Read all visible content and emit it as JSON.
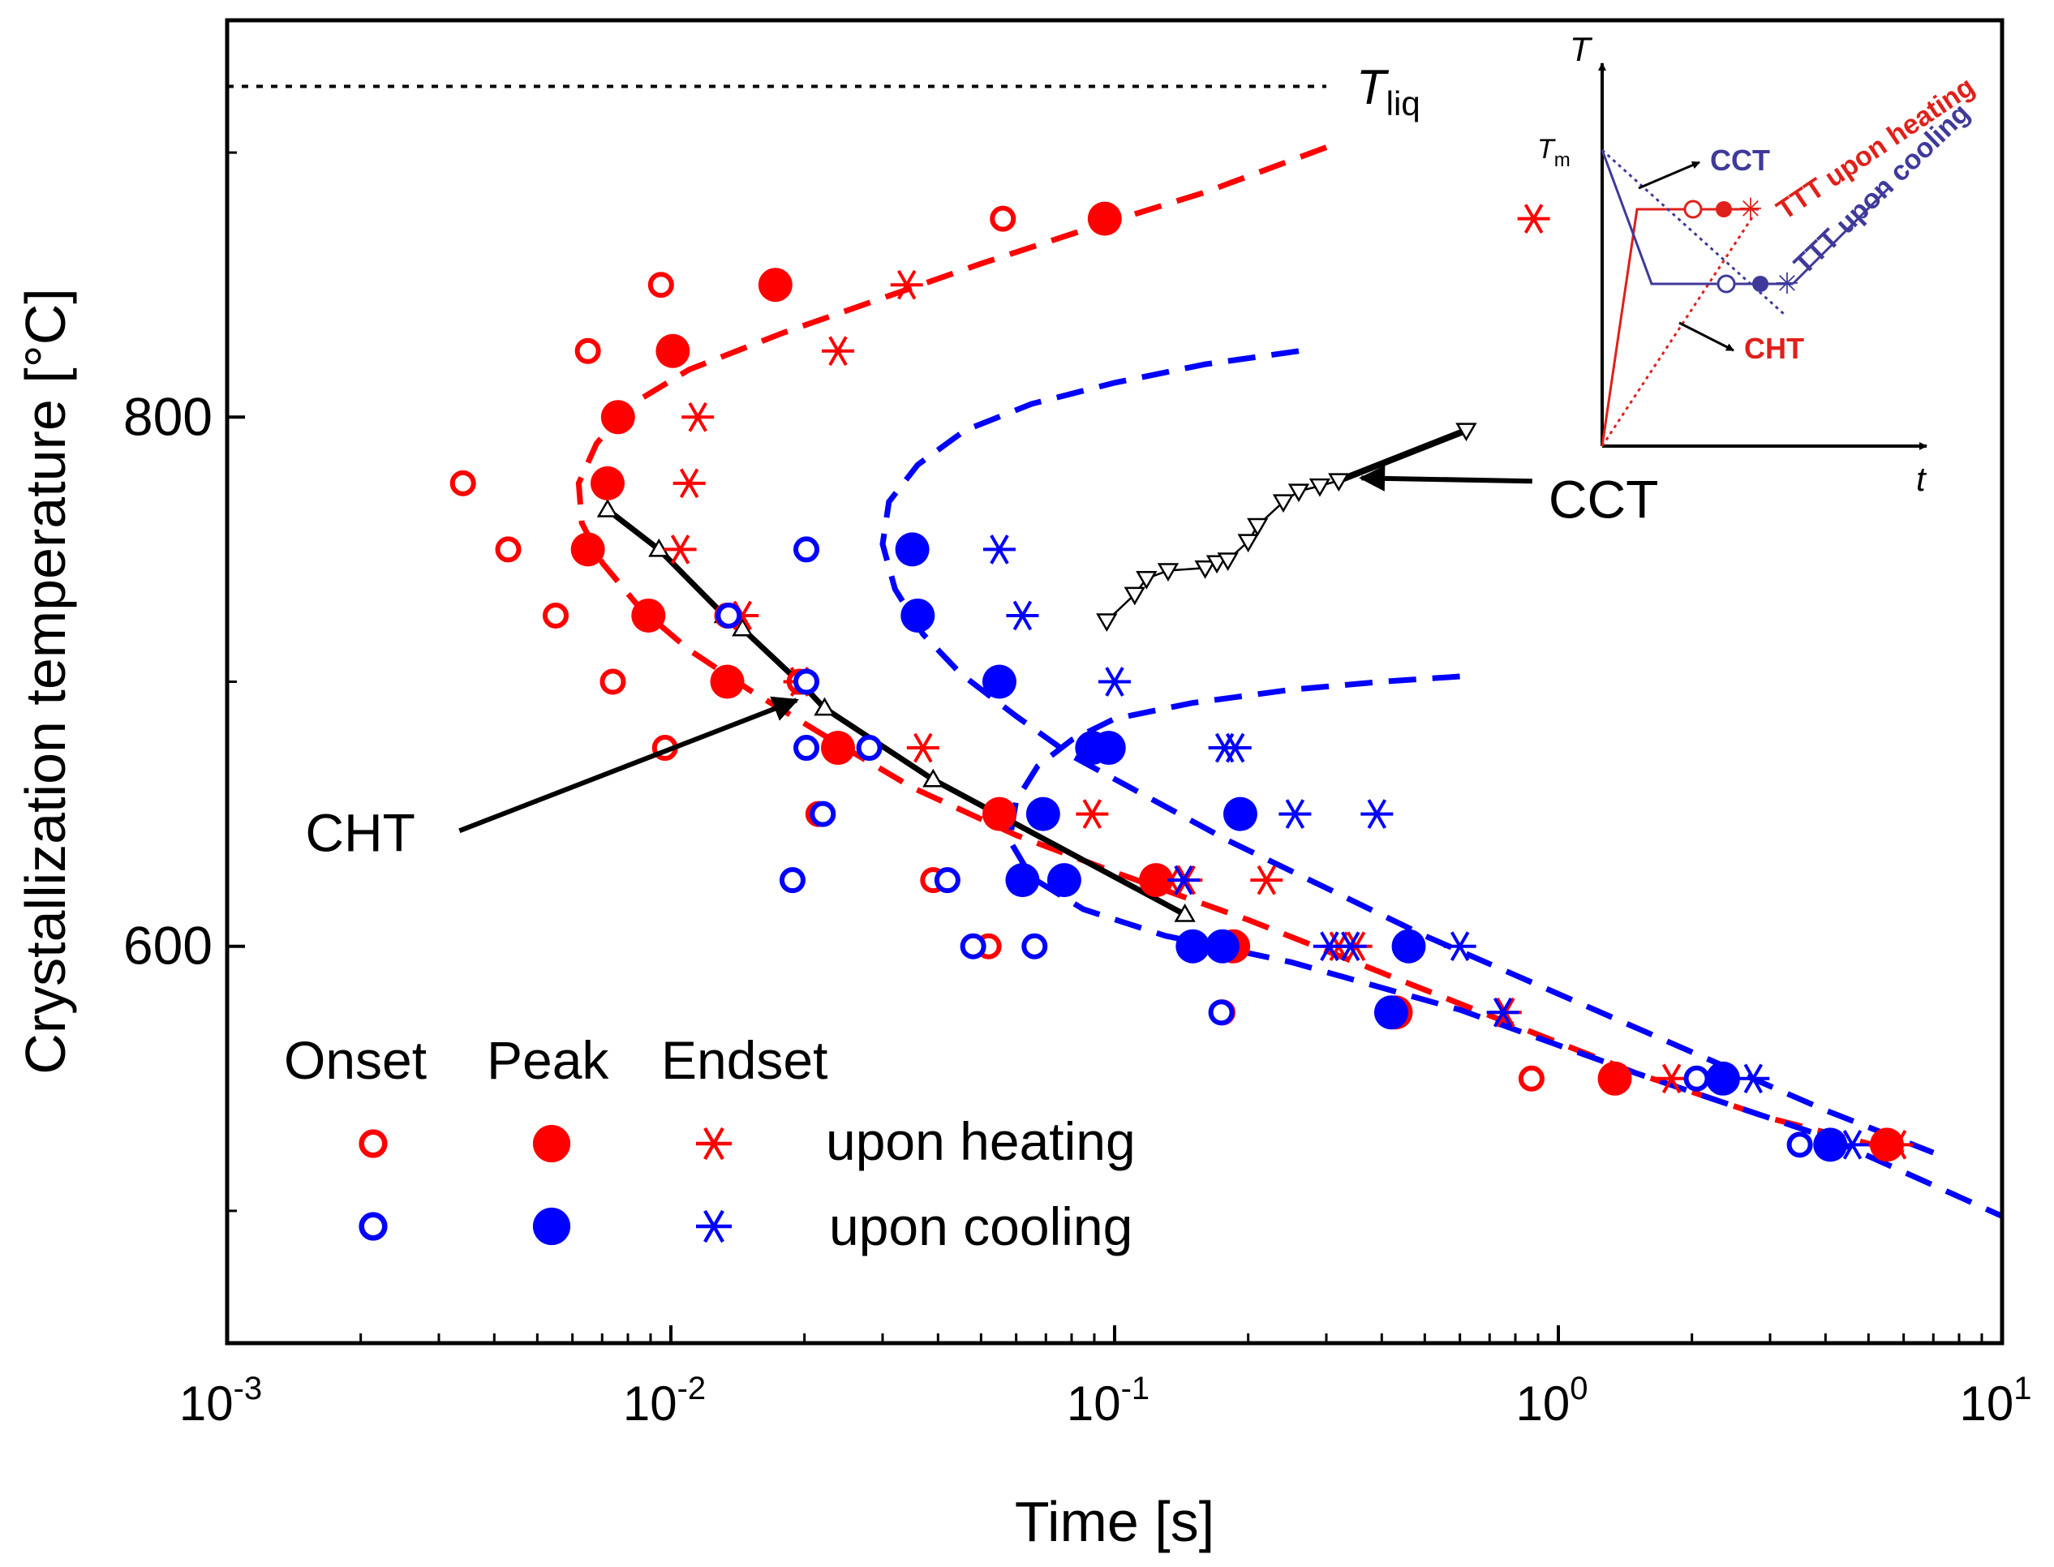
{
  "chart_data": {
    "type": "scatter",
    "x_scale": "log",
    "xlim": [
      0.001,
      10
    ],
    "ylim": [
      450,
      950
    ],
    "xlabel": "Time [s]",
    "ylabel": "Crystallization temperature [°C]",
    "x_ticks": [
      {
        "value": 0.001,
        "base": "10",
        "exp": "-3"
      },
      {
        "value": 0.01,
        "base": "10",
        "exp": "-2"
      },
      {
        "value": 0.1,
        "base": "10",
        "exp": "-1"
      },
      {
        "value": 1,
        "base": "10",
        "exp": "0"
      },
      {
        "value": 10,
        "base": "10",
        "exp": "1"
      }
    ],
    "y_major_ticks": [
      {
        "value": 600,
        "label": "600"
      },
      {
        "value": 800,
        "label": "800"
      }
    ],
    "y_minor_ticks": [
      500,
      700,
      900
    ],
    "colors": {
      "heating": "#ff0000",
      "cooling": "#0000ff",
      "black": "#000000",
      "inset_red": "#e0201a",
      "inset_blue": "#3f3a9a"
    },
    "t_liq": {
      "value": 925,
      "label_main": "T",
      "label_sub": "liq",
      "x_end": 0.3
    },
    "legend": {
      "headers": [
        "Onset",
        "Peak",
        "Endset"
      ],
      "rows": [
        {
          "label": "upon heating",
          "color": "#ff0000"
        },
        {
          "label": "upon cooling",
          "color": "#0000ff"
        }
      ]
    },
    "series": [
      {
        "name": "Onset upon heating",
        "marker": "open-circle",
        "color": "#ff0000",
        "points": [
          [
            0.0034,
            775
          ],
          [
            0.0043,
            750
          ],
          [
            0.0055,
            725
          ],
          [
            0.0074,
            700
          ],
          [
            0.0097,
            675
          ],
          [
            0.0065,
            825
          ],
          [
            0.0095,
            850
          ],
          [
            0.0134,
            725
          ],
          [
            0.0195,
            700
          ],
          [
            0.0215,
            650
          ],
          [
            0.039,
            625
          ],
          [
            0.052,
            600
          ],
          [
            0.054,
            650
          ],
          [
            0.056,
            875
          ],
          [
            0.175,
            575
          ],
          [
            0.185,
            600
          ],
          [
            0.87,
            550
          ]
        ]
      },
      {
        "name": "Peak upon heating",
        "marker": "filled-circle",
        "color": "#ff0000",
        "points": [
          [
            0.0072,
            775
          ],
          [
            0.0065,
            750
          ],
          [
            0.0089,
            725
          ],
          [
            0.0134,
            700
          ],
          [
            0.0238,
            675
          ],
          [
            0.0076,
            800
          ],
          [
            0.0101,
            825
          ],
          [
            0.0172,
            850
          ],
          [
            0.055,
            650
          ],
          [
            0.124,
            625
          ],
          [
            0.185,
            600
          ],
          [
            0.43,
            575
          ],
          [
            1.34,
            550
          ],
          [
            5.5,
            525
          ],
          [
            0.095,
            875
          ]
        ]
      },
      {
        "name": "Endset upon heating",
        "marker": "asterisk",
        "color": "#ff0000",
        "points": [
          [
            0.0105,
            750
          ],
          [
            0.011,
            775
          ],
          [
            0.0115,
            800
          ],
          [
            0.0145,
            725
          ],
          [
            0.0195,
            700
          ],
          [
            0.0238,
            825
          ],
          [
            0.034,
            850
          ],
          [
            0.037,
            675
          ],
          [
            0.089,
            650
          ],
          [
            0.134,
            625
          ],
          [
            0.22,
            625
          ],
          [
            0.32,
            600
          ],
          [
            0.76,
            575
          ],
          [
            1.8,
            550
          ],
          [
            5.8,
            525
          ],
          [
            0.145,
            625
          ],
          [
            0.35,
            600
          ],
          [
            0.88,
            875
          ]
        ]
      },
      {
        "name": "Onset upon cooling",
        "marker": "open-circle",
        "color": "#0000ff",
        "points": [
          [
            0.0202,
            750
          ],
          [
            0.0202,
            700
          ],
          [
            0.0202,
            675
          ],
          [
            0.028,
            675
          ],
          [
            0.022,
            650
          ],
          [
            0.0188,
            625
          ],
          [
            0.042,
            625
          ],
          [
            0.048,
            600
          ],
          [
            0.066,
            600
          ],
          [
            0.0135,
            725
          ],
          [
            0.174,
            575
          ],
          [
            2.05,
            550
          ],
          [
            3.5,
            525
          ]
        ]
      },
      {
        "name": "Peak upon cooling",
        "marker": "filled-circle",
        "color": "#0000ff",
        "points": [
          [
            0.035,
            750
          ],
          [
            0.036,
            725
          ],
          [
            0.055,
            700
          ],
          [
            0.089,
            675
          ],
          [
            0.097,
            675
          ],
          [
            0.069,
            650
          ],
          [
            0.192,
            650
          ],
          [
            0.062,
            625
          ],
          [
            0.077,
            625
          ],
          [
            0.15,
            600
          ],
          [
            0.175,
            600
          ],
          [
            0.46,
            600
          ],
          [
            0.42,
            575
          ],
          [
            2.35,
            550
          ],
          [
            4.1,
            525
          ]
        ]
      },
      {
        "name": "Endset upon cooling",
        "marker": "asterisk",
        "color": "#0000ff",
        "points": [
          [
            0.055,
            750
          ],
          [
            0.062,
            725
          ],
          [
            0.1,
            700
          ],
          [
            0.177,
            675
          ],
          [
            0.187,
            675
          ],
          [
            0.255,
            650
          ],
          [
            0.39,
            650
          ],
          [
            0.143,
            625
          ],
          [
            0.305,
            600
          ],
          [
            0.34,
            600
          ],
          [
            0.6,
            600
          ],
          [
            0.75,
            575
          ],
          [
            2.75,
            550
          ],
          [
            4.6,
            525
          ]
        ]
      }
    ],
    "fits": [
      {
        "name": "TTT fit upon heating",
        "color": "#ff0000",
        "points": [
          [
            0.3,
            902
          ],
          [
            0.16,
            885
          ],
          [
            0.09,
            872
          ],
          [
            0.05,
            858
          ],
          [
            0.03,
            845
          ],
          [
            0.018,
            832
          ],
          [
            0.011,
            818
          ],
          [
            0.008,
            804
          ],
          [
            0.0068,
            790
          ],
          [
            0.0062,
            775
          ],
          [
            0.0063,
            760
          ],
          [
            0.007,
            745
          ],
          [
            0.0085,
            728
          ],
          [
            0.011,
            712
          ],
          [
            0.015,
            697
          ],
          [
            0.022,
            680
          ],
          [
            0.035,
            660
          ],
          [
            0.06,
            642
          ],
          [
            0.1,
            628
          ],
          [
            0.2,
            610
          ],
          [
            0.4,
            590
          ],
          [
            0.8,
            570
          ],
          [
            1.5,
            552
          ],
          [
            3,
            535
          ],
          [
            6,
            522
          ]
        ]
      },
      {
        "name": "TTT fit upon cooling (upper)",
        "color": "#0000ff",
        "points": [
          [
            0.26,
            825
          ],
          [
            0.16,
            820
          ],
          [
            0.1,
            813
          ],
          [
            0.065,
            805
          ],
          [
            0.046,
            795
          ],
          [
            0.036,
            782
          ],
          [
            0.031,
            768
          ],
          [
            0.03,
            752
          ],
          [
            0.032,
            735
          ],
          [
            0.037,
            718
          ],
          [
            0.045,
            703
          ],
          [
            0.06,
            687
          ],
          [
            0.08,
            672
          ],
          [
            0.12,
            656
          ],
          [
            0.18,
            640
          ],
          [
            0.3,
            622
          ],
          [
            0.5,
            604
          ],
          [
            1,
            582
          ],
          [
            2,
            560
          ],
          [
            4,
            538
          ],
          [
            7,
            522
          ]
        ]
      },
      {
        "name": "TTT fit upon cooling (lower)",
        "color": "#0000ff",
        "points": [
          [
            0.6,
            702
          ],
          [
            0.4,
            700
          ],
          [
            0.25,
            697
          ],
          [
            0.15,
            692
          ],
          [
            0.1,
            686
          ],
          [
            0.08,
            678
          ],
          [
            0.067,
            668
          ],
          [
            0.06,
            655
          ],
          [
            0.058,
            640
          ],
          [
            0.065,
            626
          ],
          [
            0.085,
            614
          ],
          [
            0.13,
            604
          ],
          [
            0.25,
            594
          ],
          [
            0.6,
            576
          ],
          [
            1.5,
            552
          ],
          [
            4,
            528
          ],
          [
            10,
            498
          ]
        ]
      }
    ],
    "cht_curve": {
      "name": "CHT",
      "points": [
        [
          0.0072,
          765
        ],
        [
          0.0094,
          750
        ],
        [
          0.0132,
          725
        ],
        [
          0.0145,
          720
        ],
        [
          0.02,
          698
        ],
        [
          0.0222,
          690
        ],
        [
          0.039,
          663
        ],
        [
          0.144,
          612
        ]
      ]
    },
    "cct_curve": {
      "name": "CCT",
      "points": [
        [
          0.096,
          723
        ],
        [
          0.111,
          733
        ],
        [
          0.118,
          739
        ],
        [
          0.132,
          742
        ],
        [
          0.16,
          743
        ],
        [
          0.17,
          745
        ],
        [
          0.18,
          746
        ],
        [
          0.2,
          753
        ],
        [
          0.21,
          759
        ],
        [
          0.24,
          768
        ],
        [
          0.26,
          772
        ],
        [
          0.29,
          774
        ],
        [
          0.32,
          776
        ],
        [
          0.62,
          795
        ]
      ]
    },
    "annotations": [
      {
        "text": "CHT",
        "label_x": 0.0015,
        "label_y": 636,
        "arrow_to_x": 0.0192,
        "arrow_to_y": 693
      },
      {
        "text": "CCT",
        "label_x": 0.95,
        "label_y": 762,
        "arrow_to_x": 0.36,
        "arrow_to_y": 777
      }
    ],
    "inset": {
      "axis_T": "T",
      "axis_t": "t",
      "T_m_main": "T",
      "T_m_sub": "m",
      "labels": [
        "CCT",
        "TTT upon heating",
        "TTT upon cooling",
        "CHT"
      ]
    }
  }
}
